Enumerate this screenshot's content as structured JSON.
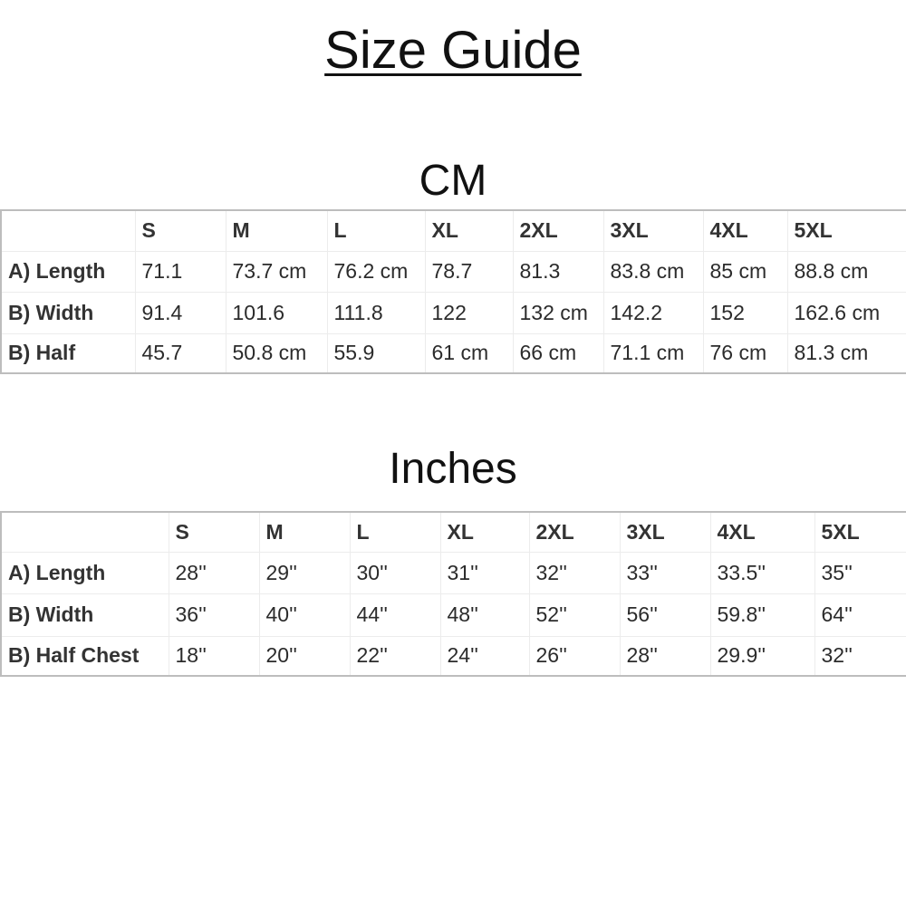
{
  "title": "Size Guide",
  "cm_table": {
    "heading": "CM",
    "sizes": [
      "S",
      "M",
      "L",
      "XL",
      "2XL",
      "3XL",
      "4XL",
      "5XL"
    ],
    "rows": [
      {
        "label": "A) Length",
        "values": [
          "71.1",
          "73.7 cm",
          "76.2 cm",
          "78.7",
          "81.3",
          "83.8 cm",
          "85 cm",
          "88.8 cm"
        ]
      },
      {
        "label": "B) Width",
        "values": [
          "91.4",
          "101.6",
          "111.8",
          "122",
          "132 cm",
          "142.2",
          "152",
          "162.6 cm"
        ]
      },
      {
        "label": "B) Half",
        "values": [
          "45.7",
          "50.8 cm",
          "55.9",
          "61 cm",
          "66 cm",
          "71.1 cm",
          "76 cm",
          "81.3 cm"
        ]
      }
    ]
  },
  "inch_table": {
    "heading": "Inches",
    "sizes": [
      "S",
      "M",
      "L",
      "XL",
      "2XL",
      "3XL",
      "4XL",
      "5XL"
    ],
    "rows": [
      {
        "label": "A) Length",
        "values": [
          "28''",
          "29''",
          "30''",
          "31''",
          "32''",
          "33''",
          "33.5''",
          "35''"
        ]
      },
      {
        "label": "B) Width",
        "values": [
          "36''",
          "40''",
          "44''",
          "48''",
          "52''",
          "56''",
          "59.8''",
          "64''"
        ]
      },
      {
        "label": "B) Half Chest",
        "values": [
          "18''",
          "20''",
          "22''",
          "24''",
          "26''",
          "28''",
          "29.9''",
          "32''"
        ]
      }
    ]
  }
}
